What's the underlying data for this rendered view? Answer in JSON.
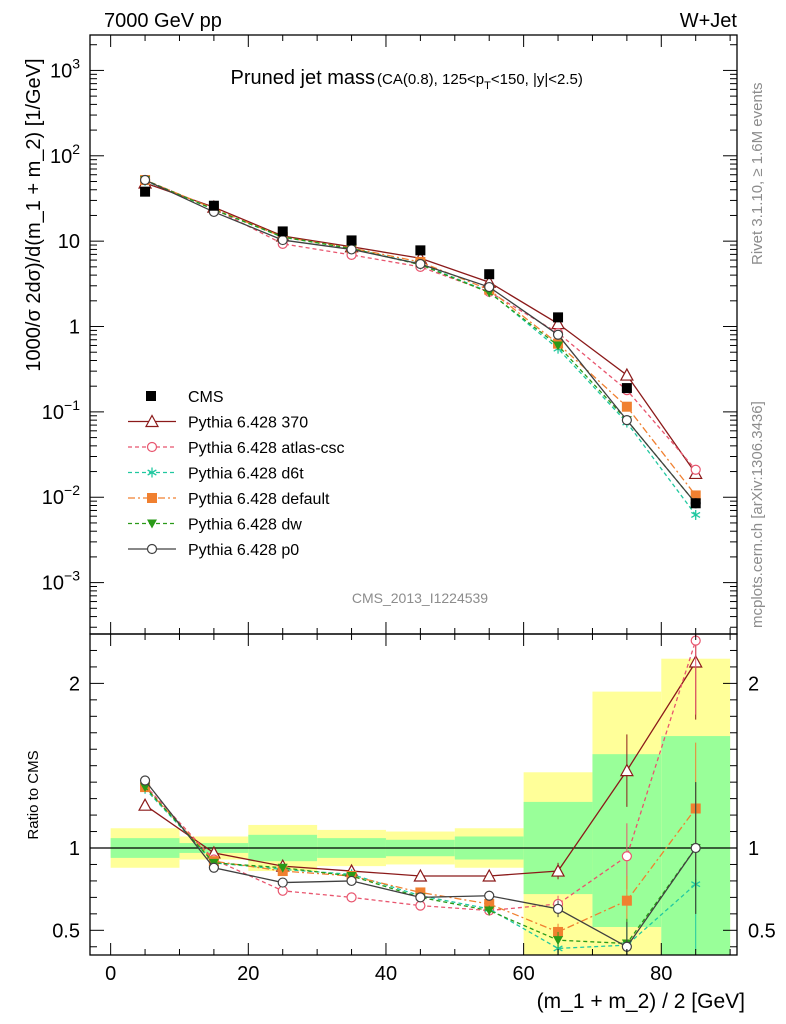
{
  "header": {
    "left": "7000 GeV pp",
    "right": "W+Jet"
  },
  "side_labels": {
    "rivet": "Rivet 3.1.10, ≥ 1.6M events",
    "mcplots": "mcplots.cern.ch [arXiv:1306.3436]"
  },
  "chart_data": {
    "type": "line",
    "title": "Pruned jet mass",
    "subtitle_parts": [
      "(CA(0.8), 125<p",
      "T",
      "<150, |y|<2.5)"
    ],
    "analysis_id": "CMS_2013_I1224539",
    "xlabel": "(m_1 + m_2) / 2 [GeV]",
    "ylabel": "1000/σ 2dσ)/d(m_1 + m_2) [1/GeV]",
    "ratio_ylabel": "Ratio to CMS",
    "xlim": [
      -3,
      91
    ],
    "ylim_log": [
      0.00025,
      2600
    ],
    "ratio_ylim": [
      0.35,
      2.3
    ],
    "x_ticks": [
      0,
      20,
      40,
      60,
      80
    ],
    "x_tick_labels": [
      "0",
      "20",
      "40",
      "60",
      "80"
    ],
    "y_ticks": [
      {
        "value": 1000,
        "base": "10",
        "exp": "3"
      },
      {
        "value": 100,
        "base": "10",
        "exp": "2"
      },
      {
        "value": 10,
        "base": "10",
        "exp": ""
      },
      {
        "value": 1,
        "base": "1",
        "exp": ""
      },
      {
        "value": 0.1,
        "base": "10",
        "exp": "−1"
      },
      {
        "value": 0.01,
        "base": "10",
        "exp": "−2"
      },
      {
        "value": 0.001,
        "base": "10",
        "exp": "−3"
      }
    ],
    "ratio_ticks": [
      {
        "value": 0.5,
        "label": "0.5"
      },
      {
        "value": 1,
        "label": "1"
      },
      {
        "value": 2,
        "label": "2"
      }
    ],
    "bins": [
      [
        0,
        10
      ],
      [
        10,
        20
      ],
      [
        20,
        30
      ],
      [
        30,
        40
      ],
      [
        40,
        50
      ],
      [
        50,
        60
      ],
      [
        60,
        70
      ],
      [
        70,
        80
      ],
      [
        80,
        90
      ]
    ],
    "x": [
      5,
      15,
      25,
      35,
      45,
      55,
      65,
      75,
      85
    ],
    "data": {
      "name": "CMS",
      "values": [
        38,
        26,
        13,
        10.2,
        7.8,
        4.1,
        1.28,
        0.19,
        0.0085
      ]
    },
    "uncertainty_bands": {
      "inner_color": "#99ff99",
      "outer_color": "#ffff99",
      "inner": [
        [
          0.94,
          1.06
        ],
        [
          0.97,
          1.03
        ],
        [
          0.92,
          1.08
        ],
        [
          0.94,
          1.06
        ],
        [
          0.95,
          1.05
        ],
        [
          0.93,
          1.07
        ],
        [
          0.72,
          1.28
        ],
        [
          0.52,
          1.57
        ],
        [
          0.3,
          1.68
        ]
      ],
      "outer": [
        [
          0.88,
          1.12
        ],
        [
          0.93,
          1.07
        ],
        [
          0.86,
          1.14
        ],
        [
          0.89,
          1.11
        ],
        [
          0.9,
          1.1
        ],
        [
          0.88,
          1.12
        ],
        [
          0.35,
          1.46
        ],
        [
          0.3,
          1.95
        ],
        [
          0.3,
          2.15
        ]
      ]
    },
    "series": [
      {
        "name": "Pythia 6.428 370",
        "color": "#8b1a1a",
        "dash": "",
        "marker": "triangle-open",
        "values": [
          48,
          25,
          11.5,
          8.6,
          6.3,
          3.3,
          1.08,
          0.27,
          0.019
        ],
        "ratio": [
          1.26,
          0.97,
          0.89,
          0.86,
          0.83,
          0.83,
          0.86,
          1.47,
          2.13
        ],
        "ratio_err": [
          0.02,
          0.02,
          0.02,
          0.02,
          0.02,
          0.03,
          0.05,
          0.22,
          0.35
        ]
      },
      {
        "name": "Pythia 6.428 atlas-csc",
        "color": "#e8556e",
        "dash": "4,3",
        "marker": "circle-open",
        "values": [
          52,
          24,
          9.3,
          6.9,
          5.0,
          2.55,
          0.84,
          0.18,
          0.021
        ],
        "ratio": [
          1.38,
          0.93,
          0.74,
          0.7,
          0.65,
          0.62,
          0.66,
          0.95,
          2.26
        ],
        "ratio_err": [
          0.02,
          0.02,
          0.02,
          0.02,
          0.02,
          0.03,
          0.05,
          0.2,
          0.45
        ]
      },
      {
        "name": "Pythia 6.428 d6t",
        "color": "#20c8a0",
        "dash": "4,3",
        "marker": "star",
        "values": [
          51,
          23.5,
          11.1,
          8.2,
          5.4,
          2.55,
          0.55,
          0.075,
          0.0062
        ],
        "ratio": [
          1.36,
          0.91,
          0.87,
          0.84,
          0.71,
          0.63,
          0.39,
          0.41,
          0.78
        ],
        "ratio_err": [
          0.02,
          0.02,
          0.02,
          0.02,
          0.02,
          0.03,
          0.05,
          0.15,
          0.4
        ]
      },
      {
        "name": "Pythia 6.428 default",
        "color": "#f08030",
        "dash": "7,3,2,3",
        "marker": "square",
        "values": [
          52,
          24,
          11.2,
          8.3,
          5.7,
          2.7,
          0.63,
          0.115,
          0.0105
        ],
        "ratio": [
          1.37,
          0.92,
          0.86,
          0.83,
          0.73,
          0.66,
          0.49,
          0.68,
          1.24
        ],
        "ratio_err": [
          0.02,
          0.02,
          0.02,
          0.02,
          0.02,
          0.03,
          0.05,
          0.15,
          0.4
        ]
      },
      {
        "name": "Pythia 6.428 dw",
        "color": "#2a9a18",
        "dash": "4,3",
        "marker": "triangle-down",
        "values": [
          52,
          23.5,
          11.2,
          8.2,
          5.3,
          2.5,
          0.6,
          0.08,
          0.0085
        ],
        "ratio": [
          1.37,
          0.91,
          0.88,
          0.83,
          0.7,
          0.62,
          0.44,
          0.42,
          1.0
        ],
        "ratio_err": [
          0.02,
          0.02,
          0.02,
          0.02,
          0.02,
          0.03,
          0.05,
          0.15,
          0.4
        ]
      },
      {
        "name": "Pythia 6.428 p0",
        "color": "#404040",
        "dash": "",
        "marker": "circle-open",
        "values": [
          52,
          22,
          10.3,
          8.0,
          5.4,
          2.9,
          0.8,
          0.08,
          0.0085
        ],
        "ratio": [
          1.41,
          0.88,
          0.79,
          0.8,
          0.7,
          0.71,
          0.63,
          0.4,
          1.0
        ],
        "ratio_err": [
          0.02,
          0.02,
          0.02,
          0.02,
          0.02,
          0.03,
          0.05,
          0.15,
          0.4
        ]
      }
    ]
  }
}
